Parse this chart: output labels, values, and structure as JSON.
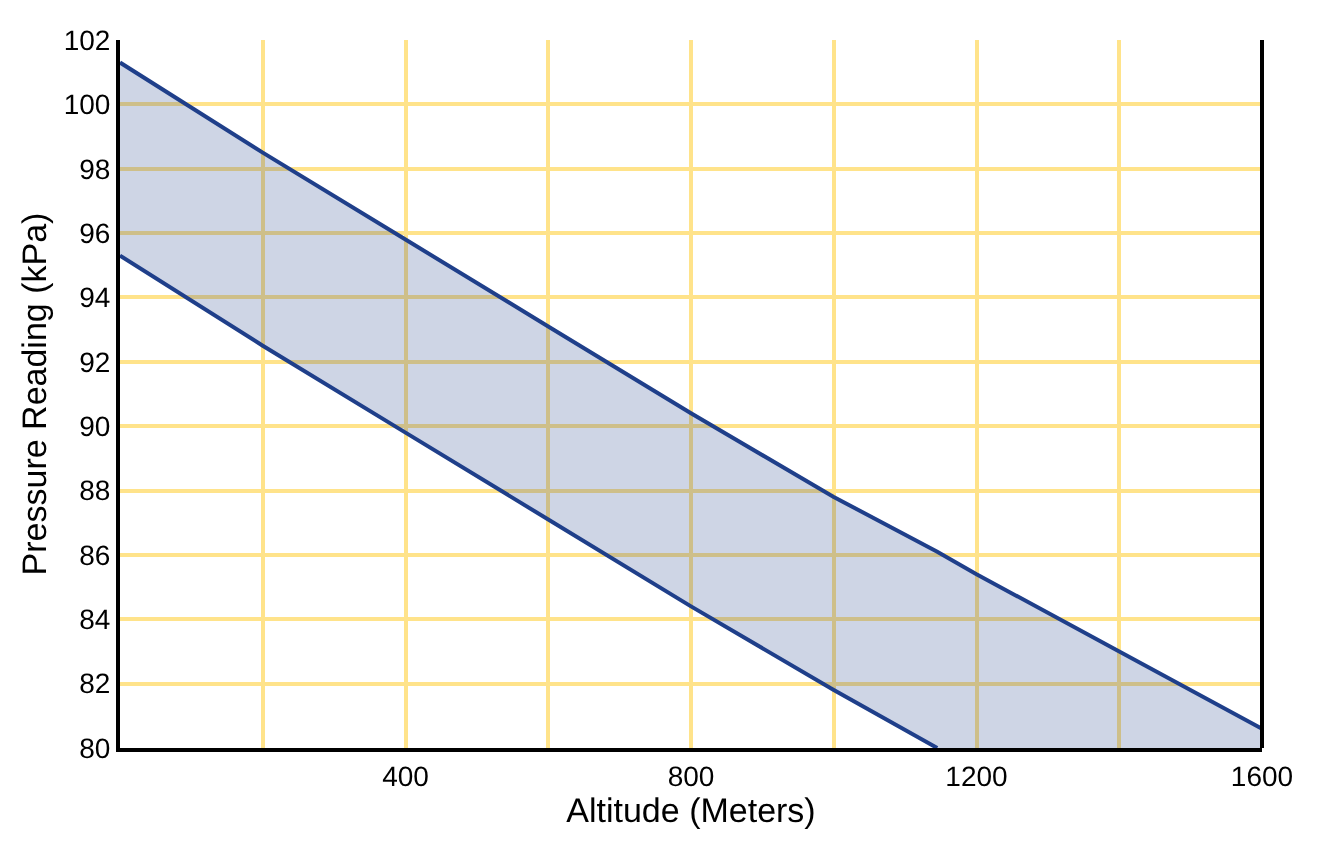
{
  "chart_data": {
    "type": "line",
    "xlabel": "Altitude (Meters)",
    "ylabel": "Pressure Reading (kPa)",
    "series": [
      {
        "color": "#1f3f8a",
        "x": [
          0,
          200,
          400,
          600,
          800,
          1000,
          1145,
          1200,
          1400,
          1600
        ],
        "values": [
          101.3,
          98.5,
          95.8,
          93.1,
          90.4,
          87.8,
          86.1,
          85.4,
          83.0,
          80.6
        ],
        "lower": [
          95.3,
          92.5,
          89.8,
          87.1,
          84.4,
          81.8,
          80.0,
          80.0,
          80.0,
          80.0
        ],
        "upper": [
          101.3,
          98.5,
          95.8,
          93.1,
          90.4,
          87.8,
          86.1,
          85.4,
          83.0,
          80.6
        ]
      },
      {
        "color": "#1f3f8a",
        "x": [
          0,
          200,
          400,
          600,
          800,
          1000,
          1145
        ],
        "values": [
          95.3,
          92.5,
          89.8,
          87.1,
          84.4,
          81.8,
          80.0
        ]
      }
    ],
    "xlim": [
      0,
      1600
    ],
    "ylim": [
      80,
      102
    ],
    "xticks": [
      {
        "value": 200,
        "label": null
      },
      400,
      {
        "value": 600,
        "label": null
      },
      800,
      {
        "value": 1000,
        "label": null
      },
      1200,
      {
        "value": 1400,
        "label": null
      },
      1600
    ],
    "yticks": [
      80,
      82,
      84,
      86,
      88,
      90,
      92,
      94,
      96,
      98,
      100,
      102
    ],
    "grid": true,
    "marker": "none",
    "line_style": "solid"
  }
}
